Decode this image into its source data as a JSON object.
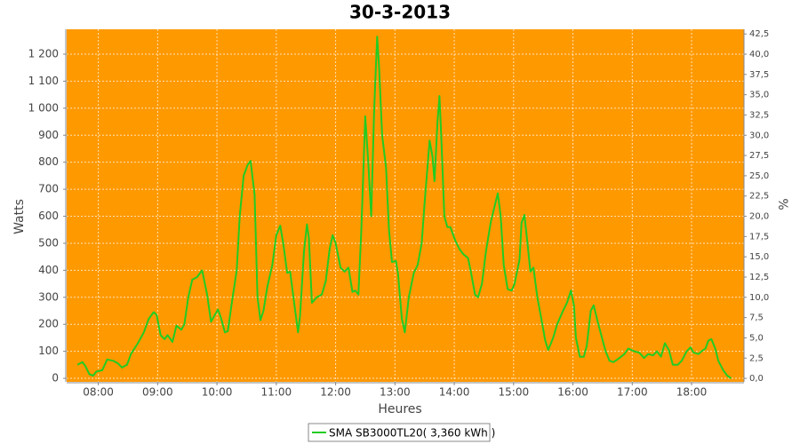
{
  "chart_data": {
    "type": "line",
    "title": "30-3-2013",
    "x_label": "Heures",
    "y_label": "Watts",
    "y2_label": "%",
    "background": "#ff9900",
    "grid": true,
    "legend": "bottom",
    "xlim": [
      "07:28",
      "18:53"
    ],
    "xticks": [
      "08:00",
      "09:00",
      "10:00",
      "11:00",
      "12:00",
      "13:00",
      "14:00",
      "15:00",
      "16:00",
      "17:00",
      "18:00"
    ],
    "ylim": [
      -13,
      1292
    ],
    "yticks": [
      0,
      100,
      200,
      300,
      400,
      500,
      600,
      700,
      800,
      900,
      {
        "value": 1000,
        "label": "1 000"
      },
      {
        "value": 1100,
        "label": "1 100"
      },
      {
        "value": 1200,
        "label": "1 200"
      }
    ],
    "y2lim": [
      -0.43,
      43.07
    ],
    "y2ticks": [
      {
        "value": 0,
        "label": "0,0"
      },
      {
        "value": 2.5,
        "label": "2,5"
      },
      {
        "value": 5,
        "label": "5,0"
      },
      {
        "value": 7.5,
        "label": "7,5"
      },
      {
        "value": 10,
        "label": "10,0"
      },
      {
        "value": 12.5,
        "label": "12,5"
      },
      {
        "value": 15,
        "label": "15,0"
      },
      {
        "value": 17.5,
        "label": "17,5"
      },
      {
        "value": 20,
        "label": "20,0"
      },
      {
        "value": 22.5,
        "label": "22,5"
      },
      {
        "value": 25,
        "label": "25,0"
      },
      {
        "value": 27.5,
        "label": "27,5"
      },
      {
        "value": 30,
        "label": "30,0"
      },
      {
        "value": 32.5,
        "label": "32,5"
      },
      {
        "value": 35,
        "label": "35,0"
      },
      {
        "value": 37.5,
        "label": "37,5"
      },
      {
        "value": 40,
        "label": "40,0"
      },
      {
        "value": 42.5,
        "label": "42,5"
      }
    ],
    "x": [
      "07:39",
      "07:44",
      "07:47",
      "07:51",
      "07:55",
      "07:58",
      "08:04",
      "08:09",
      "08:15",
      "08:20",
      "08:24",
      "08:29",
      "08:33",
      "08:40",
      "08:46",
      "08:51",
      "08:56",
      "08:59",
      "09:03",
      "09:07",
      "09:10",
      "09:15",
      "09:19",
      "09:24",
      "09:27",
      "09:31",
      "09:35",
      "09:40",
      "09:45",
      "09:50",
      "09:54",
      "10:01",
      "10:04",
      "10:08",
      "10:11",
      "10:15",
      "10:20",
      "10:23",
      "10:27",
      "10:31",
      "10:34",
      "10:38",
      "10:41",
      "10:44",
      "10:47",
      "10:51",
      "10:56",
      "11:00",
      "11:04",
      "11:07",
      "11:11",
      "11:14",
      "11:18",
      "11:22",
      "11:24",
      "11:28",
      "11:31",
      "11:33",
      "11:36",
      "11:41",
      "11:46",
      "11:50",
      "11:54",
      "11:57",
      "12:00",
      "12:05",
      "12:09",
      "12:13",
      "12:17",
      "12:20",
      "12:23",
      "12:26",
      "12:30",
      "12:33",
      "12:36",
      "12:39",
      "12:42",
      "12:44",
      "12:47",
      "12:51",
      "12:54",
      "12:57",
      "13:01",
      "13:03",
      "13:07",
      "13:10",
      "13:14",
      "13:19",
      "13:23",
      "13:27",
      "13:30",
      "13:35",
      "13:38",
      "13:40",
      "13:43",
      "13:45",
      "13:47",
      "13:50",
      "13:53",
      "13:56",
      "14:01",
      "14:05",
      "14:09",
      "14:14",
      "14:17",
      "14:21",
      "14:24",
      "14:28",
      "14:32",
      "14:37",
      "14:41",
      "14:44",
      "14:47",
      "14:50",
      "14:54",
      "14:58",
      "15:01",
      "15:06",
      "15:08",
      "15:11",
      "15:14",
      "15:17",
      "15:20",
      "15:24",
      "15:28",
      "15:32",
      "15:35",
      "15:40",
      "15:44",
      "15:50",
      "15:54",
      "15:58",
      "16:01",
      "16:03",
      "16:07",
      "16:11",
      "16:14",
      "16:18",
      "16:21",
      "16:25",
      "16:29",
      "16:33",
      "16:37",
      "16:41",
      "16:47",
      "16:52",
      "16:56",
      "17:02",
      "17:07",
      "17:12",
      "17:16",
      "17:21",
      "17:25",
      "17:29",
      "17:33",
      "17:37",
      "17:41",
      "17:46",
      "17:50",
      "17:55",
      "17:59",
      "18:02",
      "18:07",
      "18:10",
      "18:14",
      "18:17",
      "18:20",
      "18:24",
      "18:27",
      "18:32",
      "18:36",
      "18:40"
    ],
    "series": [
      {
        "name": "SMA SB3000TL20( 3,360 kWh )",
        "color": "#22cc22",
        "values": [
          50,
          60,
          45,
          15,
          10,
          25,
          30,
          70,
          65,
          55,
          40,
          50,
          90,
          130,
          170,
          220,
          245,
          235,
          160,
          145,
          160,
          135,
          195,
          180,
          200,
          300,
          365,
          375,
          400,
          310,
          210,
          255,
          225,
          170,
          175,
          280,
          400,
          600,
          750,
          790,
          805,
          680,
          300,
          215,
          250,
          340,
          420,
          530,
          565,
          500,
          390,
          395,
          280,
          170,
          230,
          470,
          570,
          520,
          280,
          300,
          310,
          360,
          480,
          530,
          500,
          410,
          395,
          410,
          320,
          325,
          310,
          550,
          970,
          800,
          600,
          1000,
          1265,
          1150,
          900,
          780,
          550,
          430,
          435,
          390,
          220,
          170,
          300,
          390,
          420,
          500,
          650,
          880,
          820,
          730,
          950,
          1045,
          880,
          600,
          560,
          560,
          510,
          480,
          460,
          445,
          390,
          310,
          300,
          350,
          470,
          580,
          640,
          685,
          600,
          420,
          330,
          325,
          350,
          440,
          575,
          605,
          500,
          395,
          410,
          300,
          220,
          140,
          105,
          150,
          200,
          250,
          280,
          325,
          270,
          150,
          80,
          80,
          120,
          250,
          270,
          210,
          155,
          100,
          65,
          60,
          75,
          90,
          110,
          100,
          95,
          75,
          90,
          85,
          100,
          80,
          130,
          105,
          50,
          50,
          65,
          100,
          115,
          95,
          90,
          100,
          110,
          140,
          145,
          110,
          65,
          30,
          10,
          0
        ]
      }
    ]
  }
}
